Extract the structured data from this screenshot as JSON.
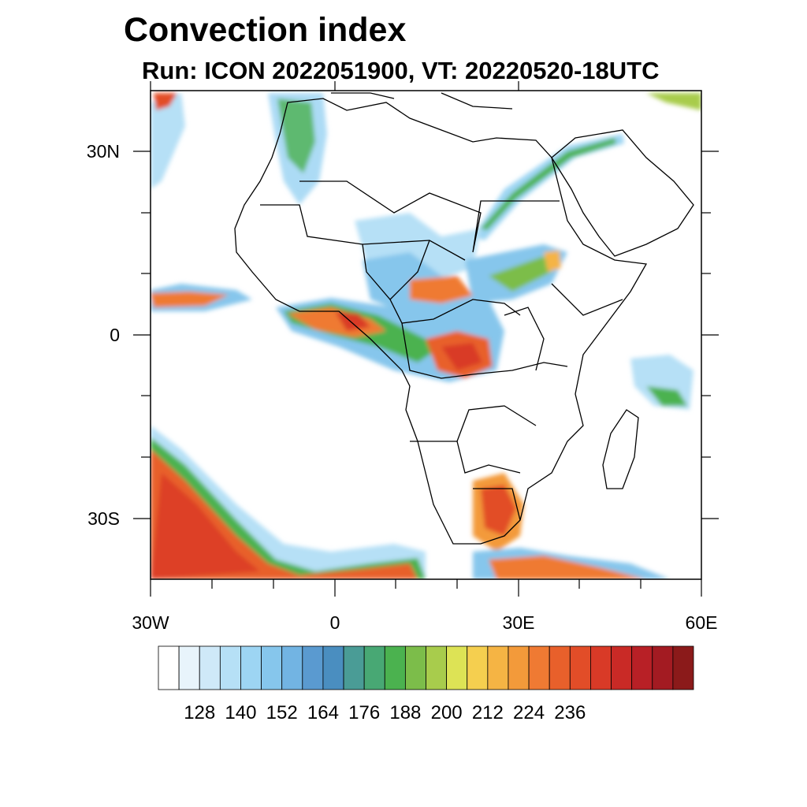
{
  "title": "Convection index",
  "subtitle": "Run: ICON 2022051900,  VT: 20220520-18UTC",
  "map": {
    "region": "Africa",
    "lon_range": [
      -30,
      60
    ],
    "lat_range": [
      -40,
      40
    ],
    "x_tick_labels": [
      "30W",
      "0",
      "30E",
      "60E"
    ],
    "y_tick_labels": [
      "30N",
      "0",
      "30S"
    ]
  },
  "colorbar": {
    "labels": [
      "128",
      "140",
      "152",
      "164",
      "176",
      "188",
      "200",
      "212",
      "224",
      "236"
    ],
    "colors": [
      "#ffffff",
      "#e8f4fb",
      "#cfe9f8",
      "#b6e0f6",
      "#9dd5f3",
      "#86c6ec",
      "#72b4e3",
      "#5a9ad0",
      "#4a8ec0",
      "#4a9c96",
      "#48a874",
      "#4bb24f",
      "#7cbd4a",
      "#a8cc4c",
      "#dde355",
      "#f5cf4f",
      "#f5b444",
      "#f39a3a",
      "#ef7a33",
      "#e8602b",
      "#e24d28",
      "#d93a27",
      "#c92a26",
      "#b82026",
      "#a31b22",
      "#8b1a1a"
    ]
  }
}
